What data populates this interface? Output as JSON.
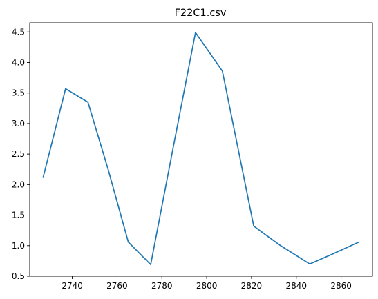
{
  "chart_data": {
    "type": "line",
    "title": "F22C1.csv",
    "xlabel": "",
    "ylabel": "",
    "xlim": [
      2721,
      2874
    ],
    "ylim": [
      0.5,
      4.65
    ],
    "xticks": [
      2740,
      2760,
      2780,
      2800,
      2820,
      2840,
      2860
    ],
    "yticks": [
      0.5,
      1.0,
      1.5,
      2.0,
      2.5,
      3.0,
      3.5,
      4.0,
      4.5
    ],
    "xtick_labels": [
      "2740",
      "2760",
      "2780",
      "2800",
      "2820",
      "2840",
      "2860"
    ],
    "ytick_labels": [
      "0.5",
      "1.0",
      "1.5",
      "2.0",
      "2.5",
      "3.0",
      "3.5",
      "4.0",
      "4.5"
    ],
    "grid": false,
    "colors": {
      "line": "#1f77b4"
    },
    "series": [
      {
        "x": [
          2727,
          2737,
          2747,
          2756,
          2765,
          2775,
          2785,
          2795,
          2807,
          2821,
          2833,
          2846,
          2856,
          2868
        ],
        "y": [
          2.12,
          3.57,
          3.35,
          2.25,
          1.06,
          0.69,
          2.6,
          4.49,
          3.86,
          1.32,
          1.0,
          0.7,
          0.86,
          1.06
        ]
      }
    ]
  }
}
